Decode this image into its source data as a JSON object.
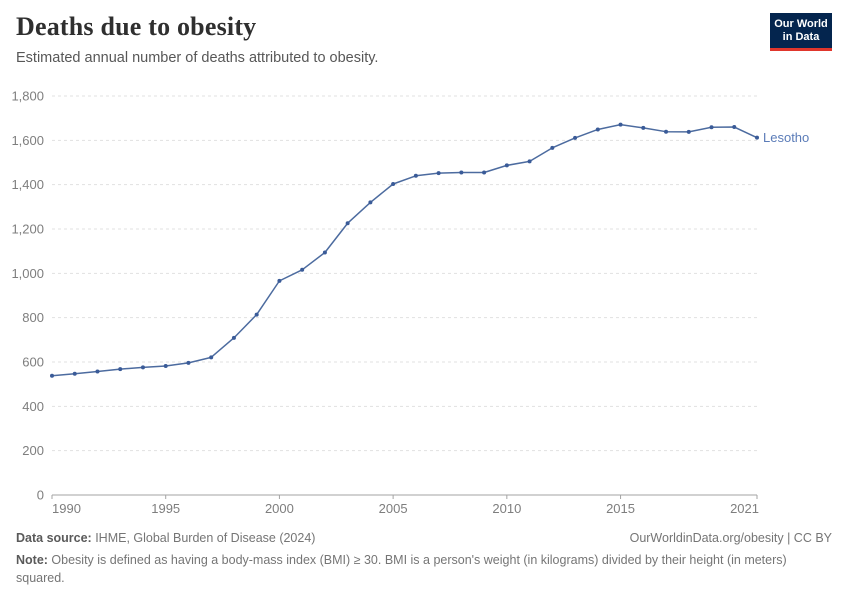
{
  "header": {
    "title": "Deaths due to obesity",
    "subtitle": "Estimated annual number of deaths attributed to obesity.",
    "logo": {
      "line1": "Our World",
      "line2": "in Data"
    }
  },
  "chart_data": {
    "type": "line",
    "title": "Deaths due to obesity",
    "xlabel": "",
    "ylabel": "",
    "x": [
      1990,
      1991,
      1992,
      1993,
      1994,
      1995,
      1996,
      1997,
      1998,
      1999,
      2000,
      2001,
      2002,
      2003,
      2004,
      2005,
      2006,
      2007,
      2008,
      2009,
      2010,
      2011,
      2012,
      2013,
      2014,
      2015,
      2016,
      2017,
      2018,
      2019,
      2020,
      2021
    ],
    "series": [
      {
        "name": "Lesotho",
        "values": [
          538,
          547,
          557,
          568,
          576,
          582,
          596,
          621,
          709,
          814,
          966,
          1016,
          1094,
          1226,
          1320,
          1403,
          1440,
          1452,
          1455,
          1455,
          1487,
          1505,
          1566,
          1611,
          1649,
          1671,
          1656,
          1639,
          1638,
          1659,
          1660,
          1612
        ]
      }
    ],
    "ylim": [
      0,
      1800
    ],
    "yticks": [
      0,
      200,
      400,
      600,
      800,
      1000,
      1200,
      1400,
      1600,
      1800
    ],
    "ytick_labels": [
      "0",
      "200",
      "400",
      "600",
      "800",
      "1,000",
      "1,200",
      "1,400",
      "1,600",
      "1,800"
    ],
    "xticks": [
      1990,
      1995,
      2000,
      2005,
      2010,
      2015,
      2021
    ],
    "grid": "horizontal-dashed",
    "legend_position": "end-of-line-label"
  },
  "colors": {
    "line": "#4C6B9F",
    "marker": "#3A5B98",
    "entity_label": "#5B7CB8",
    "grid": "#e1e1e1",
    "axis": "#a3a3a3",
    "tick_label": "#7e7e7e",
    "title": "#2f2f2f",
    "subtitle": "#575757",
    "footer_text": "#757575",
    "footer_bold": "#5a5a5a",
    "logo_bg": "#04254e",
    "logo_red": "#e0362c"
  },
  "footer": {
    "datasource_label": "Data source:",
    "datasource": " IHME, Global Burden of Disease (2024)",
    "license": "OurWorldinData.org/obesity | CC BY",
    "note_label": "Note:",
    "note": " Obesity is defined as having a body-mass index (BMI) ≥ 30. BMI is a person's weight (in kilograms) divided by their height (in meters) squared."
  }
}
